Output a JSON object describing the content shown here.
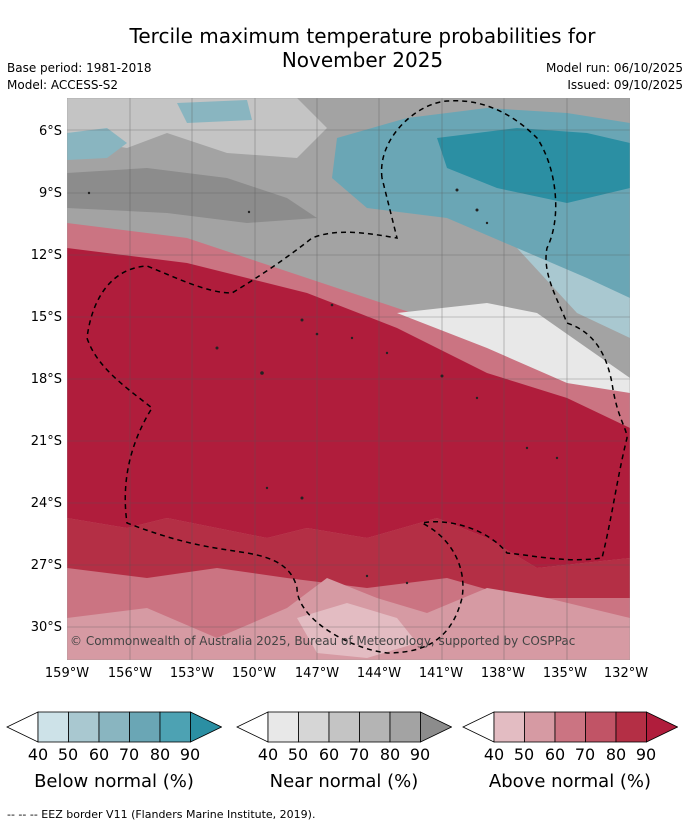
{
  "title_line1": "Tercile maximum temperature probabilities for",
  "title_line2": "November 2025",
  "base_period": "Base period: 1981-2018",
  "model": "Model: ACCESS-S2",
  "model_run": "Model run: 06/10/2025",
  "issued": "Issued: 09/10/2025",
  "copyright": "© Commonwealth of Australia 2025, Bureau of Meteorology, supported by COSPPac",
  "lat_labels": [
    "6°S",
    "9°S",
    "12°S",
    "15°S",
    "18°S",
    "21°S",
    "24°S",
    "27°S",
    "30°S"
  ],
  "lon_labels": [
    "159°W",
    "156°W",
    "153°W",
    "150°W",
    "147°W",
    "144°W",
    "141°W",
    "138°W",
    "135°W",
    "132°W"
  ],
  "colors": {
    "below": [
      "#ffffff",
      "#cde2e8",
      "#a9c8d0",
      "#89b5c0",
      "#6aa6b5",
      "#4da2b3",
      "#2b8fa3"
    ],
    "near": [
      "#ffffff",
      "#e8e8e8",
      "#d6d6d6",
      "#c4c4c4",
      "#b4b4b4",
      "#a3a3a3",
      "#8c8c8c"
    ],
    "above": [
      "#ffffff",
      "#e3bcc2",
      "#d69aa3",
      "#cb7482",
      "#c15466",
      "#b42f45",
      "#b01d3c"
    ]
  },
  "colorbars": [
    {
      "title": "Below normal (%)",
      "ticks": [
        "40",
        "50",
        "60",
        "70",
        "80",
        "90"
      ]
    },
    {
      "title": "Near normal (%)",
      "ticks": [
        "40",
        "50",
        "60",
        "70",
        "80",
        "90"
      ]
    },
    {
      "title": "Above normal (%)",
      "ticks": [
        "40",
        "50",
        "60",
        "70",
        "80",
        "90"
      ]
    }
  ],
  "footer": "--  --  -- EEZ border V11 (Flanders Marine Institute, 2019)."
}
